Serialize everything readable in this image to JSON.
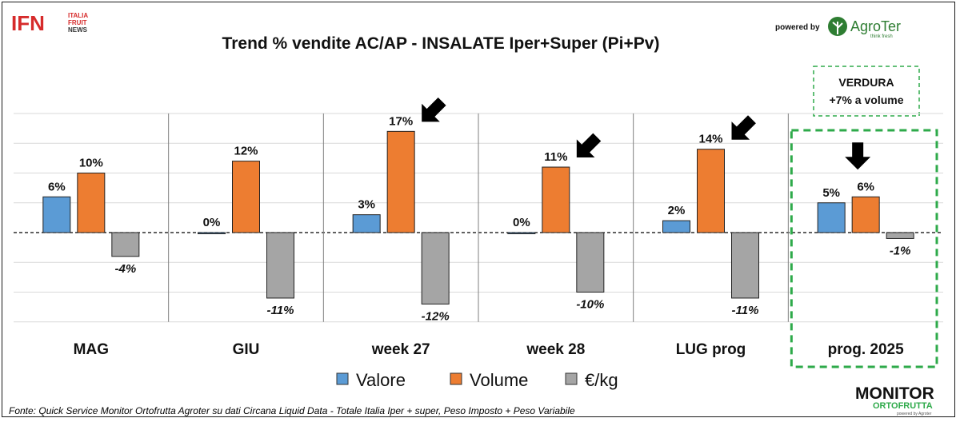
{
  "header": {
    "logo_left": {
      "mark": "IFN",
      "line1": "ITALIA",
      "line2": "FRUIT",
      "line3": "NEWS"
    },
    "title": "Trend % vendite AC/AP - INSALATE  Iper+Super (Pi+Pv)",
    "powered_by": "powered by",
    "logo_right": {
      "name": "AgroTer",
      "tagline": "think fresh"
    }
  },
  "callout": {
    "line1": "VERDURA",
    "line2": "+7% a volume"
  },
  "chart_data": {
    "type": "bar",
    "title": "Trend % vendite AC/AP - INSALATE  Iper+Super (Pi+Pv)",
    "categories": [
      "MAG",
      "GIU",
      "week 27",
      "week 28",
      "LUG prog",
      "prog. 2025"
    ],
    "series": [
      {
        "name": "Valore",
        "color": "#5b9bd5",
        "values": [
          6,
          0,
          3,
          0,
          2,
          5
        ],
        "labels": [
          "6%",
          "0%",
          "3%",
          "0%",
          "2%",
          "5%"
        ]
      },
      {
        "name": "Volume",
        "color": "#ed7d31",
        "values": [
          10,
          12,
          17,
          11,
          14,
          6
        ],
        "labels": [
          "10%",
          "12%",
          "17%",
          "11%",
          "14%",
          "6%"
        ]
      },
      {
        "name": "€/kg",
        "color": "#a5a5a5",
        "values": [
          -4,
          -11,
          -12,
          -10,
          -11,
          -1
        ],
        "labels": [
          "-4%",
          "-11%",
          "-12%",
          "-10%",
          "-11%",
          "-1%"
        ]
      }
    ],
    "ylim": [
      -15,
      20
    ],
    "grid": true,
    "legend": "bottom",
    "highlighted_category": "prog. 2025",
    "arrows_on": [
      "week 27",
      "week 28",
      "LUG prog",
      "prog. 2025"
    ]
  },
  "footer": {
    "source": "Fonte: Quick Service Monitor Ortofrutta Agroter su dati Circana Liquid Data - Totale Italia Iper + super, Peso Imposto + Peso Variabile",
    "logo": {
      "line1": "MONITOR",
      "line2": "ORTOFRUTTA",
      "line3": "powered by Agroter"
    }
  }
}
